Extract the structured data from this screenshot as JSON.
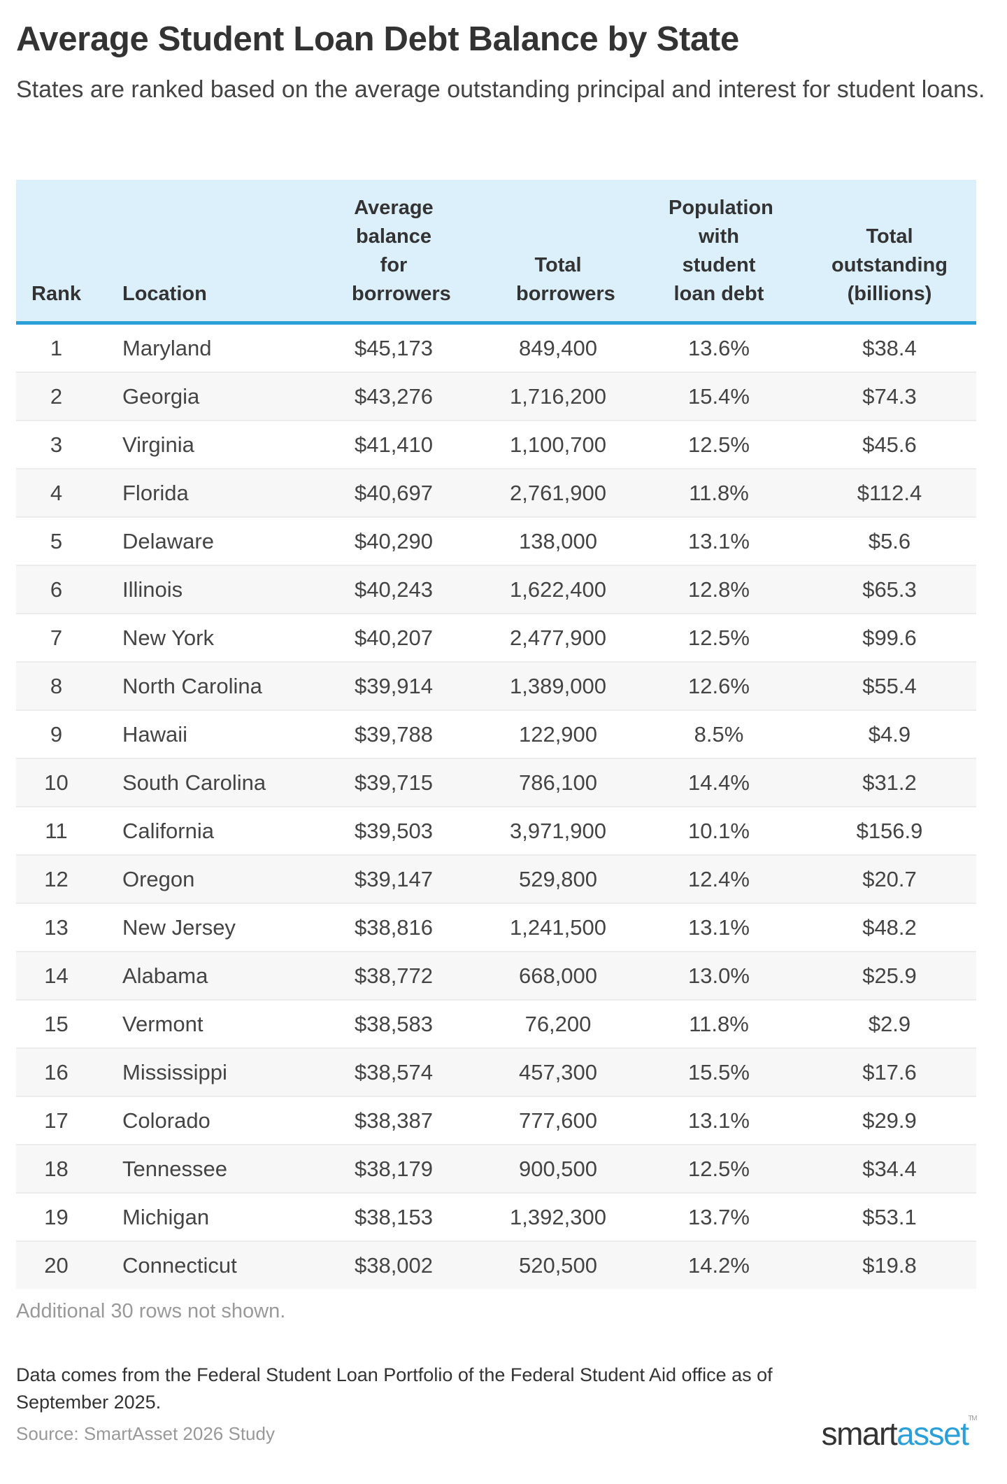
{
  "title": "Average Student Loan Debt Balance by State",
  "subtitle": "States are ranked based on the average outstanding principal and interest for student loans.",
  "colors": {
    "header_bg": "#dcf0fb",
    "header_rule": "#2a9fd8",
    "brand_blue": "#2a9fd8"
  },
  "table": {
    "columns": [
      "Rank",
      "Location",
      "Average balance for borrowers",
      "Total borrowers",
      "Population with student loan debt",
      "Total outstanding (billions)"
    ],
    "rows": [
      [
        "1",
        "Maryland",
        "$45,173",
        "849,400",
        "13.6%",
        "$38.4"
      ],
      [
        "2",
        "Georgia",
        "$43,276",
        "1,716,200",
        "15.4%",
        "$74.3"
      ],
      [
        "3",
        "Virginia",
        "$41,410",
        "1,100,700",
        "12.5%",
        "$45.6"
      ],
      [
        "4",
        "Florida",
        "$40,697",
        "2,761,900",
        "11.8%",
        "$112.4"
      ],
      [
        "5",
        "Delaware",
        "$40,290",
        "138,000",
        "13.1%",
        "$5.6"
      ],
      [
        "6",
        "Illinois",
        "$40,243",
        "1,622,400",
        "12.8%",
        "$65.3"
      ],
      [
        "7",
        "New York",
        "$40,207",
        "2,477,900",
        "12.5%",
        "$99.6"
      ],
      [
        "8",
        "North Carolina",
        "$39,914",
        "1,389,000",
        "12.6%",
        "$55.4"
      ],
      [
        "9",
        "Hawaii",
        "$39,788",
        "122,900",
        "8.5%",
        "$4.9"
      ],
      [
        "10",
        "South Carolina",
        "$39,715",
        "786,100",
        "14.4%",
        "$31.2"
      ],
      [
        "11",
        "California",
        "$39,503",
        "3,971,900",
        "10.1%",
        "$156.9"
      ],
      [
        "12",
        "Oregon",
        "$39,147",
        "529,800",
        "12.4%",
        "$20.7"
      ],
      [
        "13",
        "New Jersey",
        "$38,816",
        "1,241,500",
        "13.1%",
        "$48.2"
      ],
      [
        "14",
        "Alabama",
        "$38,772",
        "668,000",
        "13.0%",
        "$25.9"
      ],
      [
        "15",
        "Vermont",
        "$38,583",
        "76,200",
        "11.8%",
        "$2.9"
      ],
      [
        "16",
        "Mississippi",
        "$38,574",
        "457,300",
        "15.5%",
        "$17.6"
      ],
      [
        "17",
        "Colorado",
        "$38,387",
        "777,600",
        "13.1%",
        "$29.9"
      ],
      [
        "18",
        "Tennessee",
        "$38,179",
        "900,500",
        "12.5%",
        "$34.4"
      ],
      [
        "19",
        "Michigan",
        "$38,153",
        "1,392,300",
        "13.7%",
        "$53.1"
      ],
      [
        "20",
        "Connecticut",
        "$38,002",
        "520,500",
        "14.2%",
        "$19.8"
      ]
    ]
  },
  "more_rows": "Additional 30 rows not shown.",
  "note": "Data comes from the Federal Student Loan Portfolio of the Federal Student Aid office as of September 2025.",
  "source": "Source: SmartAsset 2026 Study",
  "logo": {
    "part1": "smart",
    "part2": "asset",
    "tm": "TM"
  }
}
